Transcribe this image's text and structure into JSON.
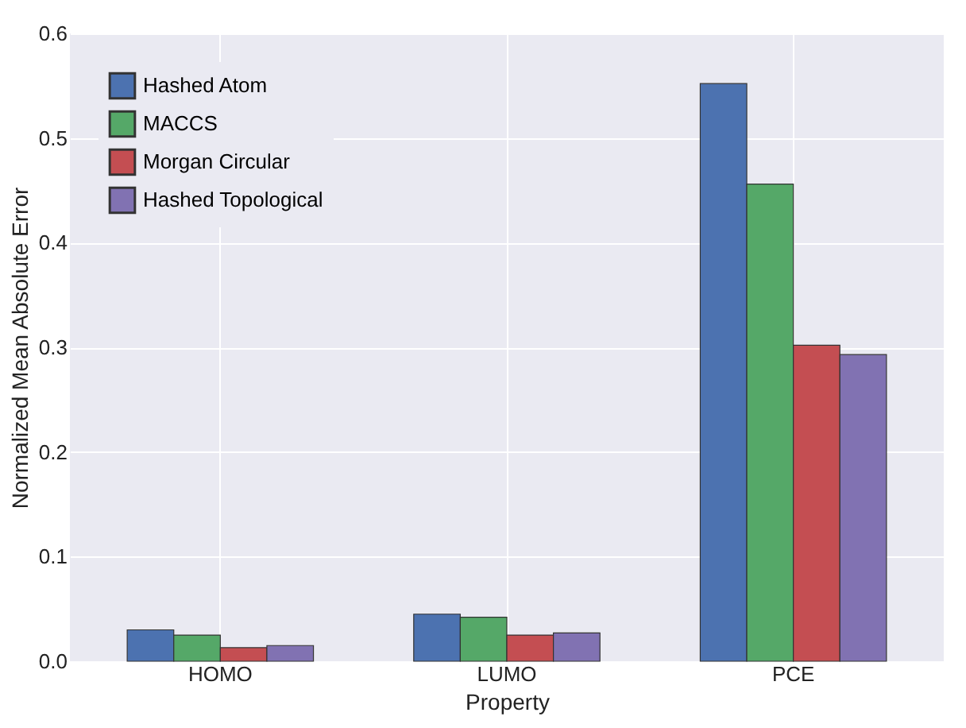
{
  "chart_data": {
    "type": "bar",
    "xlabel": "Property",
    "ylabel": "Normalized Mean Absolute Error",
    "categories": [
      "HOMO",
      "LUMO",
      "PCE"
    ],
    "series": [
      {
        "name": "Hashed Atom",
        "color": "#4c72b0",
        "values": [
          0.03,
          0.045,
          0.552
        ]
      },
      {
        "name": "MACCS",
        "color": "#55a868",
        "values": [
          0.025,
          0.042,
          0.456
        ]
      },
      {
        "name": "Morgan Circular",
        "color": "#c44e52",
        "values": [
          0.013,
          0.025,
          0.302
        ]
      },
      {
        "name": "Hashed Topological",
        "color": "#8172b2",
        "values": [
          0.015,
          0.027,
          0.293
        ]
      }
    ],
    "ylim": [
      0,
      0.6
    ],
    "yticks": [
      {
        "value": 0,
        "label": "0.0"
      },
      {
        "value": 0.1,
        "label": "0.1"
      },
      {
        "value": 0.2,
        "label": "0.2"
      },
      {
        "value": 0.3,
        "label": "0.3"
      },
      {
        "value": 0.4,
        "label": "0.4"
      },
      {
        "value": 0.5,
        "label": "0.5"
      },
      {
        "value": 0.6,
        "label": "0.6"
      }
    ],
    "grid": true,
    "legend": "top left"
  }
}
